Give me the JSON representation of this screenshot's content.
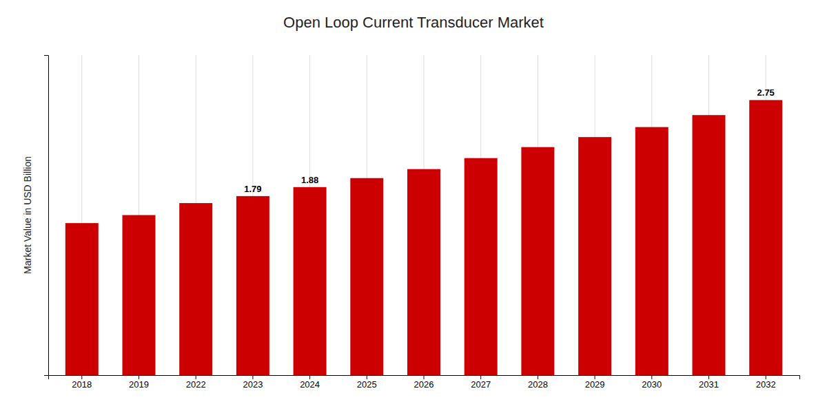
{
  "chart_data": {
    "type": "bar",
    "title": "Open Loop Current Transducer Market",
    "ylabel": "Market Value in USD Billion",
    "categories": [
      "2018",
      "2019",
      "2022",
      "2023",
      "2024",
      "2025",
      "2026",
      "2027",
      "2028",
      "2029",
      "2030",
      "2031",
      "2032"
    ],
    "values": [
      1.52,
      1.6,
      1.72,
      1.79,
      1.88,
      1.97,
      2.06,
      2.17,
      2.28,
      2.38,
      2.48,
      2.6,
      2.75
    ],
    "value_labels": [
      null,
      null,
      null,
      "1.79",
      "1.88",
      null,
      null,
      null,
      null,
      null,
      null,
      null,
      "2.75"
    ],
    "data_labels": true,
    "color": "#CC0000",
    "ylim": [
      0,
      3.2
    ],
    "yticks": [],
    "tick_labels": "x",
    "grid": true
  }
}
